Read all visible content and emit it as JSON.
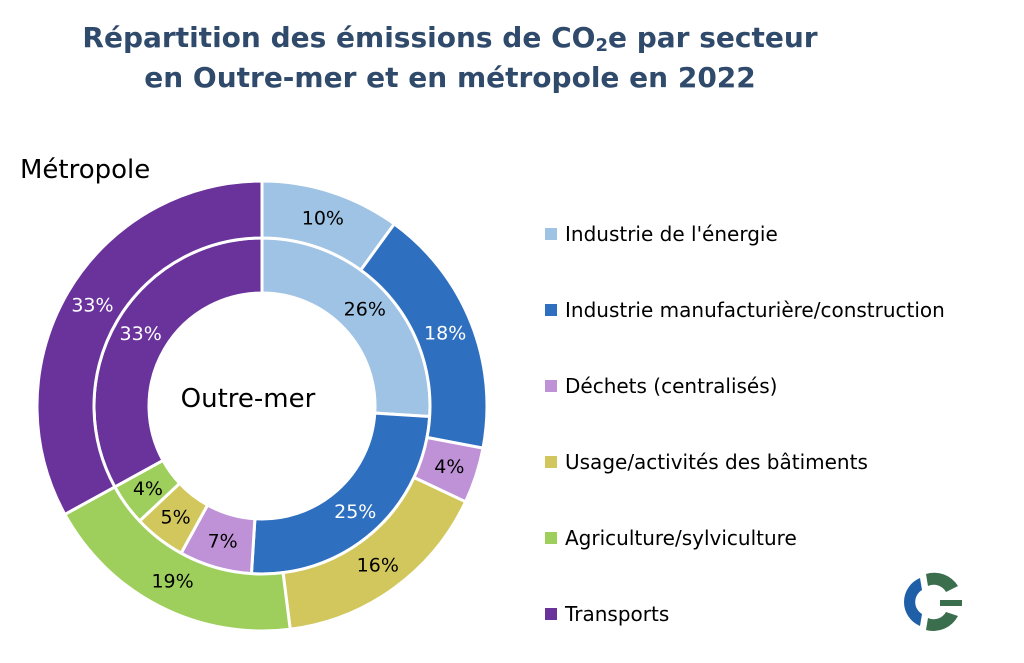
{
  "title": {
    "prefix": "Répartition des émissions de CO",
    "subscript": "2",
    "suffix": "e par secteur",
    "line2": "en Outre-mer et en métropole en 2022"
  },
  "colors": {
    "Industrie de l'énergie": "#9fc3e4",
    "Industrie manufacturière/construction": "#2e6fbf",
    "Déchets (centralisés)": "#bf92d8",
    "Usage/activités des bâtiments": "#d2c75c",
    "Agriculture/sylviculture": "#9ecf5c",
    "Transports": "#6a329b"
  },
  "chart_data": {
    "type": "pie",
    "subtype": "nested-donut",
    "categories": [
      "Industrie de l'énergie",
      "Industrie manufacturière/construction",
      "Déchets (centralisés)",
      "Usage/activités des bâtiments",
      "Agriculture/sylviculture",
      "Transports"
    ],
    "series": [
      {
        "name": "Outre-mer",
        "ring": "inner",
        "values": [
          26,
          25,
          7,
          5,
          4,
          33
        ],
        "labels": [
          "26%",
          "25%",
          "7%",
          "5%",
          "4%",
          "33%"
        ]
      },
      {
        "name": "Métropole",
        "ring": "outer",
        "values": [
          10,
          18,
          4,
          16,
          19,
          33
        ],
        "labels": [
          "10%",
          "18%",
          "4%",
          "16%",
          "19%",
          "33%"
        ]
      }
    ],
    "legend": "right"
  }
}
